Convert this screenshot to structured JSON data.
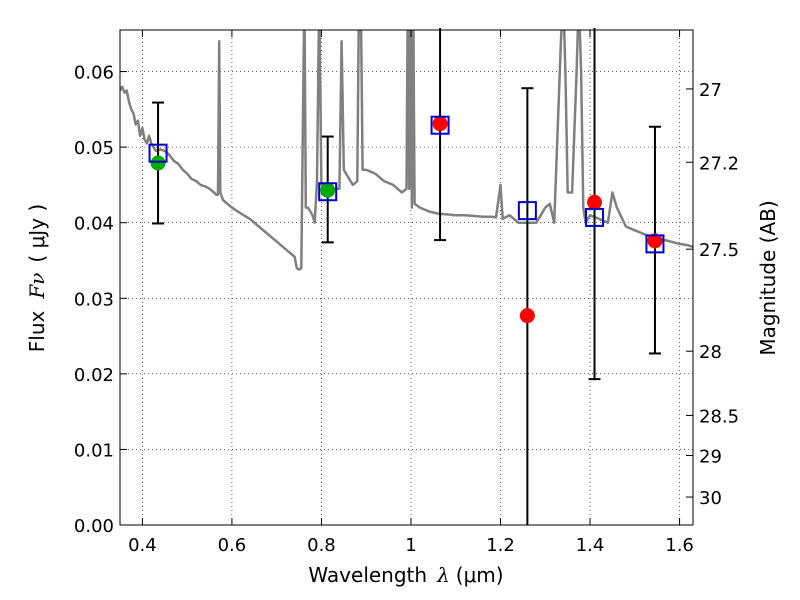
{
  "chart_data": {
    "type": "scatter",
    "xlabel": "Wavelength",
    "xlabel_symbol": "λ",
    "xlabel_unit": "(μm)",
    "ylabel": "Flux",
    "ylabel_symbol": "Fν",
    "ylabel_unit": "( μJy )",
    "ylabel_right": "Magnitude (AB)",
    "xlim": [
      0.35,
      1.63
    ],
    "ylim": [
      0.0,
      0.0655
    ],
    "grid": true,
    "x_ticks": [
      0.4,
      0.6,
      0.8,
      1.0,
      1.2,
      1.4,
      1.6
    ],
    "x_tick_labels": [
      "0.4",
      "0.6",
      "0.8",
      "1",
      "1.2",
      "1.4",
      "1.6"
    ],
    "y_ticks": [
      0.0,
      0.01,
      0.02,
      0.03,
      0.04,
      0.05,
      0.06
    ],
    "y_tick_labels": [
      "0.00",
      "0.01",
      "0.02",
      "0.03",
      "0.04",
      "0.05",
      "0.06"
    ],
    "right_axis_ticks": [
      {
        "label": "27",
        "flux": 0.0577
      },
      {
        "label": "27.2",
        "flux": 0.048
      },
      {
        "label": "27.5",
        "flux": 0.0365
      },
      {
        "label": "28",
        "flux": 0.023
      },
      {
        "label": "28.5",
        "flux": 0.0145
      },
      {
        "label": "29",
        "flux": 0.0092
      },
      {
        "label": "30",
        "flux": 0.0037
      }
    ],
    "errorbars": {
      "color": "#000000",
      "points": [
        {
          "x": 0.435,
          "y": 0.0479,
          "low": 0.0399,
          "high": 0.0559
        },
        {
          "x": 0.814,
          "y": 0.0443,
          "low": 0.0374,
          "high": 0.0514
        },
        {
          "x": 1.065,
          "y": 0.0533,
          "low": 0.0377,
          "high": 0.0689
        },
        {
          "x": 1.26,
          "y": 0.0277,
          "low": 0.0,
          "high": 0.0578
        },
        {
          "x": 1.41,
          "y": 0.0425,
          "low": 0.0193,
          "high": 0.0689
        },
        {
          "x": 1.545,
          "y": 0.0376,
          "low": 0.0227,
          "high": 0.0527
        }
      ]
    },
    "green_points": {
      "color": "#00aa00",
      "points": [
        {
          "x": 0.435,
          "y": 0.0479
        },
        {
          "x": 0.814,
          "y": 0.0443
        }
      ]
    },
    "red_points": {
      "color": "#ff0000",
      "points": [
        {
          "x": 1.065,
          "y": 0.0531
        },
        {
          "x": 1.26,
          "y": 0.0277
        },
        {
          "x": 1.41,
          "y": 0.0427
        },
        {
          "x": 1.545,
          "y": 0.0376
        }
      ]
    },
    "model_points": {
      "color": "#0000cc",
      "marker": "open-square",
      "points": [
        {
          "x": 0.435,
          "y": 0.0492
        },
        {
          "x": 0.814,
          "y": 0.0441
        },
        {
          "x": 1.065,
          "y": 0.0529
        },
        {
          "x": 1.26,
          "y": 0.0416
        },
        {
          "x": 1.41,
          "y": 0.0407
        },
        {
          "x": 1.545,
          "y": 0.0372
        }
      ]
    },
    "spectrum": {
      "color": "#808080",
      "points": [
        [
          0.35,
          0.0575
        ],
        [
          0.355,
          0.058
        ],
        [
          0.36,
          0.0572
        ],
        [
          0.365,
          0.0575
        ],
        [
          0.37,
          0.056
        ],
        [
          0.375,
          0.055
        ],
        [
          0.38,
          0.0545
        ],
        [
          0.385,
          0.053
        ],
        [
          0.39,
          0.0535
        ],
        [
          0.395,
          0.0515
        ],
        [
          0.4,
          0.0525
        ],
        [
          0.405,
          0.051
        ],
        [
          0.41,
          0.0505
        ],
        [
          0.415,
          0.0515
        ],
        [
          0.42,
          0.0505
        ],
        [
          0.425,
          0.05
        ],
        [
          0.43,
          0.0495
        ],
        [
          0.44,
          0.0497
        ],
        [
          0.45,
          0.0495
        ],
        [
          0.46,
          0.049
        ],
        [
          0.47,
          0.0482
        ],
        [
          0.48,
          0.0478
        ],
        [
          0.49,
          0.047
        ],
        [
          0.5,
          0.0465
        ],
        [
          0.51,
          0.0458
        ],
        [
          0.52,
          0.0455
        ],
        [
          0.53,
          0.045
        ],
        [
          0.54,
          0.0448
        ],
        [
          0.55,
          0.0445
        ],
        [
          0.56,
          0.044
        ],
        [
          0.565,
          0.0437
        ],
        [
          0.569,
          0.0437
        ],
        [
          0.5715,
          0.064
        ],
        [
          0.574,
          0.044
        ],
        [
          0.58,
          0.043
        ],
        [
          0.59,
          0.0425
        ],
        [
          0.6,
          0.042
        ],
        [
          0.62,
          0.0412
        ],
        [
          0.64,
          0.0405
        ],
        [
          0.66,
          0.0395
        ],
        [
          0.68,
          0.0385
        ],
        [
          0.7,
          0.0375
        ],
        [
          0.72,
          0.0365
        ],
        [
          0.74,
          0.0355
        ],
        [
          0.745,
          0.034
        ],
        [
          0.75,
          0.0338
        ],
        [
          0.755,
          0.034
        ],
        [
          0.76,
          0.06
        ],
        [
          0.762,
          0.07
        ],
        [
          0.765,
          0.042
        ],
        [
          0.77,
          0.042
        ],
        [
          0.78,
          0.041
        ],
        [
          0.785,
          0.04
        ],
        [
          0.79,
          0.0455
        ],
        [
          0.795,
          0.07
        ],
        [
          0.8,
          0.045
        ],
        [
          0.82,
          0.0445
        ],
        [
          0.84,
          0.0445
        ],
        [
          0.845,
          0.064
        ],
        [
          0.85,
          0.047
        ],
        [
          0.86,
          0.046
        ],
        [
          0.87,
          0.045
        ],
        [
          0.88,
          0.0455
        ],
        [
          0.884,
          0.07
        ],
        [
          0.888,
          0.07
        ],
        [
          0.892,
          0.047
        ],
        [
          0.9,
          0.047
        ],
        [
          0.92,
          0.0465
        ],
        [
          0.94,
          0.0455
        ],
        [
          0.96,
          0.045
        ],
        [
          0.98,
          0.044
        ],
        [
          0.99,
          0.0445
        ],
        [
          0.993,
          0.07
        ],
        [
          0.996,
          0.0445
        ],
        [
          0.999,
          0.07
        ],
        [
          1.002,
          0.042
        ],
        [
          1.005,
          0.07
        ],
        [
          1.008,
          0.0425
        ],
        [
          1.02,
          0.042
        ],
        [
          1.04,
          0.0415
        ],
        [
          1.06,
          0.0412
        ],
        [
          1.08,
          0.0411
        ],
        [
          1.1,
          0.041
        ],
        [
          1.12,
          0.041
        ],
        [
          1.14,
          0.0409
        ],
        [
          1.16,
          0.0408
        ],
        [
          1.18,
          0.0408
        ],
        [
          1.19,
          0.0407
        ],
        [
          1.2,
          0.045
        ],
        [
          1.205,
          0.0405
        ],
        [
          1.22,
          0.041
        ],
        [
          1.24,
          0.04
        ],
        [
          1.26,
          0.04
        ],
        [
          1.28,
          0.04
        ],
        [
          1.3,
          0.042
        ],
        [
          1.31,
          0.0425
        ],
        [
          1.32,
          0.04
        ],
        [
          1.33,
          0.056
        ],
        [
          1.335,
          0.064
        ],
        [
          1.34,
          0.07
        ],
        [
          1.345,
          0.06
        ],
        [
          1.35,
          0.044
        ],
        [
          1.36,
          0.044
        ],
        [
          1.37,
          0.06
        ],
        [
          1.375,
          0.07
        ],
        [
          1.38,
          0.06
        ],
        [
          1.385,
          0.042
        ],
        [
          1.39,
          0.04
        ],
        [
          1.4,
          0.041
        ],
        [
          1.42,
          0.0405
        ],
        [
          1.44,
          0.04
        ],
        [
          1.45,
          0.044
        ],
        [
          1.46,
          0.042
        ],
        [
          1.48,
          0.0395
        ],
        [
          1.5,
          0.039
        ],
        [
          1.52,
          0.0385
        ],
        [
          1.54,
          0.038
        ],
        [
          1.56,
          0.0378
        ],
        [
          1.58,
          0.0375
        ],
        [
          1.6,
          0.0372
        ],
        [
          1.62,
          0.037
        ],
        [
          1.63,
          0.0368
        ]
      ]
    }
  }
}
